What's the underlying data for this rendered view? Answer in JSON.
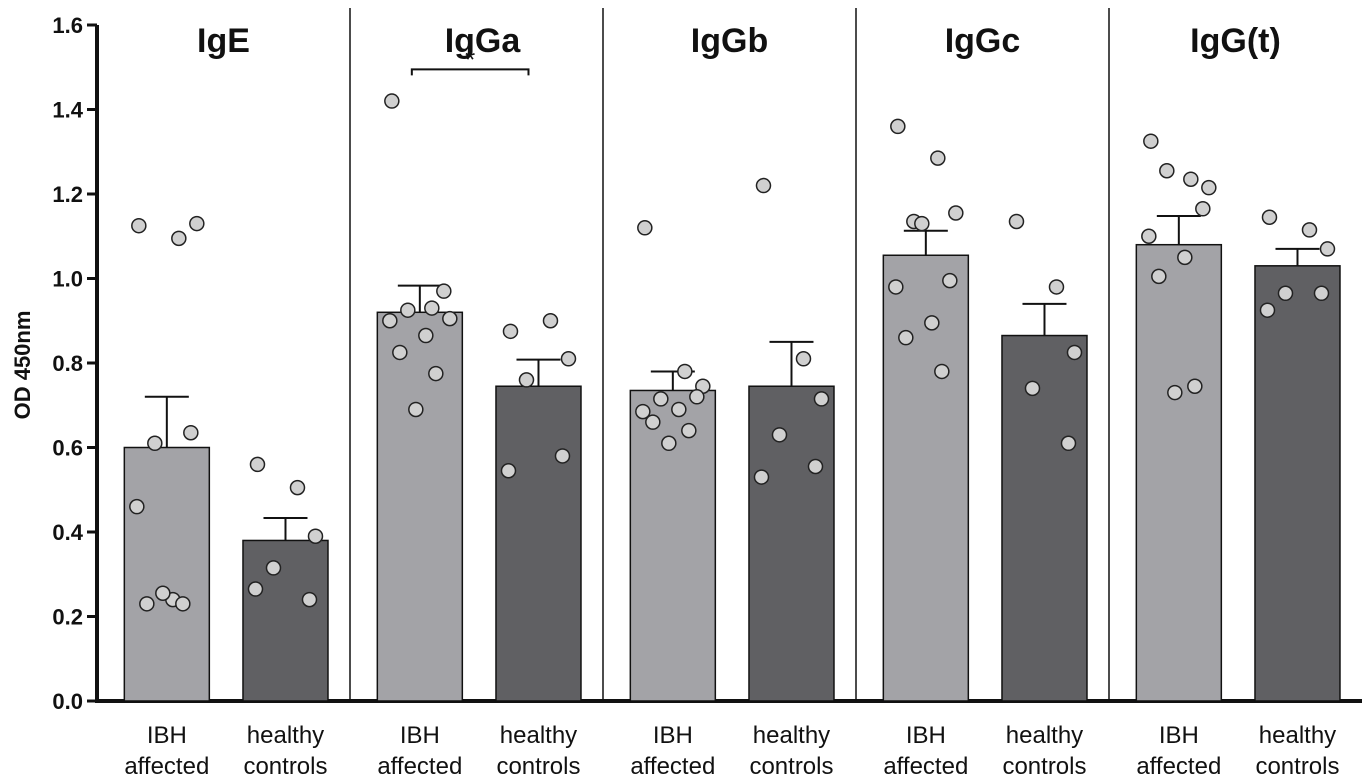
{
  "chart_data": {
    "type": "bar",
    "ylabel": "OD 450nm",
    "ylim": [
      0,
      1.6
    ],
    "yticks": [
      "0.0",
      "0.2",
      "0.4",
      "0.6",
      "0.8",
      "1.0",
      "1.2",
      "1.4",
      "1.6"
    ],
    "colors": {
      "affected": "#a3a3a7",
      "controls": "#606063",
      "point": "#d0d0d0"
    },
    "panels": [
      {
        "title": "IgE",
        "significance": "",
        "groups": [
          {
            "label_line1": "IBH",
            "label_line2": "affected",
            "kind": "affected",
            "mean": 0.6,
            "sem": 0.12,
            "points": [
              1.125,
              1.095,
              1.13,
              0.61,
              0.635,
              0.46,
              0.24,
              0.23,
              0.23,
              0.255
            ]
          },
          {
            "label_line1": "healthy",
            "label_line2": "controls",
            "kind": "controls",
            "mean": 0.38,
            "sem": 0.053,
            "points": [
              0.56,
              0.505,
              0.39,
              0.315,
              0.24,
              0.265
            ]
          }
        ]
      },
      {
        "title": "IgGa",
        "significance": "*",
        "groups": [
          {
            "label_line1": "IBH",
            "label_line2": "affected",
            "kind": "affected",
            "mean": 0.92,
            "sem": 0.063,
            "points": [
              1.42,
              0.93,
              0.905,
              0.925,
              0.97,
              0.9,
              0.865,
              0.825,
              0.775,
              0.69
            ]
          },
          {
            "label_line1": "healthy",
            "label_line2": "controls",
            "kind": "controls",
            "mean": 0.745,
            "sem": 0.063,
            "points": [
              0.875,
              0.9,
              0.81,
              0.76,
              0.58,
              0.545
            ]
          }
        ]
      },
      {
        "title": "IgGb",
        "significance": "",
        "groups": [
          {
            "label_line1": "IBH",
            "label_line2": "affected",
            "kind": "affected",
            "mean": 0.735,
            "sem": 0.045,
            "points": [
              1.12,
              0.78,
              0.745,
              0.715,
              0.72,
              0.685,
              0.69,
              0.66,
              0.64,
              0.61
            ]
          },
          {
            "label_line1": "healthy",
            "label_line2": "controls",
            "kind": "controls",
            "mean": 0.745,
            "sem": 0.105,
            "points": [
              1.22,
              0.81,
              0.715,
              0.63,
              0.555,
              0.53
            ]
          }
        ]
      },
      {
        "title": "IgGc",
        "significance": "",
        "groups": [
          {
            "label_line1": "IBH",
            "label_line2": "affected",
            "kind": "affected",
            "mean": 1.055,
            "sem": 0.058,
            "points": [
              1.36,
              1.285,
              1.155,
              1.135,
              0.995,
              0.98,
              0.895,
              0.86,
              0.78,
              1.13
            ]
          },
          {
            "label_line1": "healthy",
            "label_line2": "controls",
            "kind": "controls",
            "mean": 0.865,
            "sem": 0.075,
            "points": [
              1.135,
              0.98,
              0.825,
              0.74,
              0.61
            ]
          }
        ]
      },
      {
        "title": "IgG(t)",
        "significance": "",
        "groups": [
          {
            "label_line1": "IBH",
            "label_line2": "affected",
            "kind": "affected",
            "mean": 1.08,
            "sem": 0.068,
            "points": [
              1.325,
              1.235,
              1.215,
              1.255,
              1.165,
              1.1,
              1.05,
              1.005,
              0.745,
              0.73
            ]
          },
          {
            "label_line1": "healthy",
            "label_line2": "controls",
            "kind": "controls",
            "mean": 1.03,
            "sem": 0.04,
            "points": [
              1.145,
              1.115,
              1.07,
              0.965,
              0.965,
              0.925
            ]
          }
        ]
      }
    ]
  }
}
